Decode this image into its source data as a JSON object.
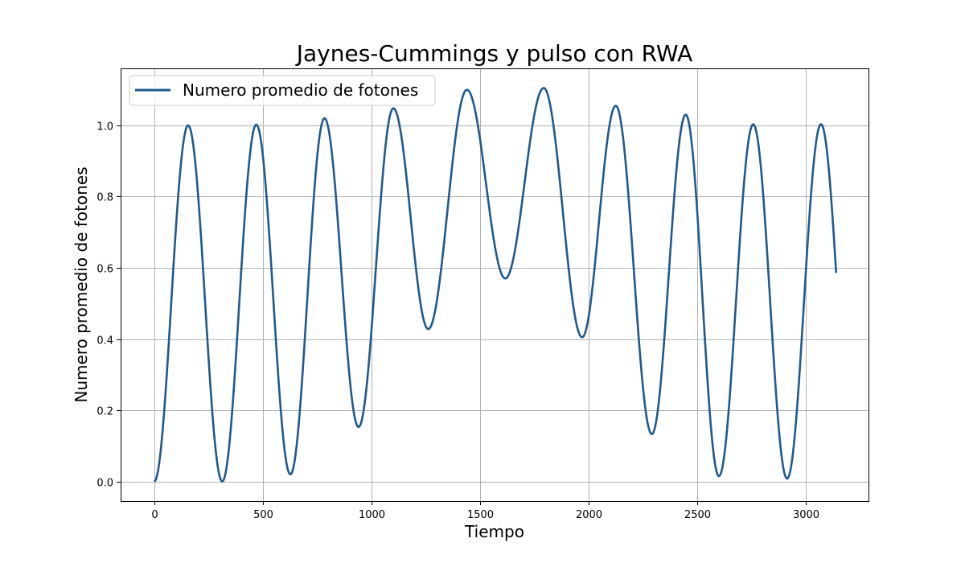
{
  "chart_data": {
    "type": "line",
    "title": "Jaynes-Cummings y pulso con RWA",
    "xlabel": "Tiempo",
    "ylabel": "Numero promedio de fotones",
    "xlim": [
      -155,
      3290
    ],
    "ylim": [
      -0.055,
      1.16
    ],
    "xticks": [
      0,
      500,
      1000,
      1500,
      2000,
      2500,
      3000
    ],
    "xtick_labels": [
      "0",
      "500",
      "1000",
      "1500",
      "2000",
      "2500",
      "3000"
    ],
    "yticks": [
      0.0,
      0.2,
      0.4,
      0.6,
      0.8,
      1.0
    ],
    "ytick_labels": [
      "0.0",
      "0.2",
      "0.4",
      "0.6",
      "0.8",
      "1.0"
    ],
    "grid": true,
    "legend_position": "upper-left",
    "series": [
      {
        "name": "Numero promedio de fotones",
        "color": "#1f5a8f",
        "extrema": [
          [
            0,
            0.0
          ],
          [
            156,
            1.0
          ],
          [
            313,
            0.0
          ],
          [
            470,
            1.002
          ],
          [
            627,
            0.02
          ],
          [
            784,
            1.02
          ],
          [
            941,
            0.153
          ],
          [
            1101,
            1.048
          ],
          [
            1262,
            0.428
          ],
          [
            1440,
            1.1
          ],
          [
            1617,
            0.57
          ],
          [
            1794,
            1.105
          ],
          [
            1971,
            0.405
          ],
          [
            2126,
            1.055
          ],
          [
            2292,
            0.133
          ],
          [
            2448,
            1.03
          ],
          [
            2601,
            0.015
          ],
          [
            2759,
            1.003
          ],
          [
            2915,
            0.008
          ],
          [
            3071,
            1.003
          ]
        ],
        "end_point": [
          3141,
          0.627
        ]
      }
    ]
  }
}
